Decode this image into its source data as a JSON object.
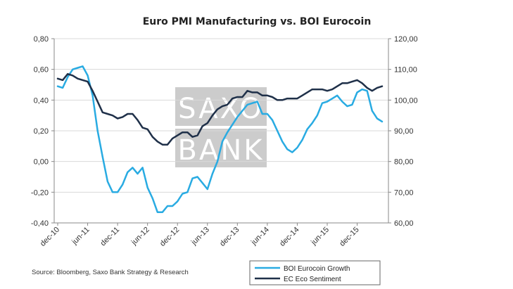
{
  "chart_data": {
    "type": "line",
    "title": "Euro PMI Manufacturing vs. BOI Eurocoin",
    "x_ticks": [
      "dec-10",
      "jun-11",
      "dec-11",
      "jun-12",
      "dec-12",
      "jun-13",
      "dec-13",
      "jun-14",
      "dec-14",
      "jun-15",
      "dec-15"
    ],
    "x_tick_index": [
      0,
      6,
      12,
      18,
      24,
      30,
      36,
      42,
      48,
      54,
      60
    ],
    "y_left": {
      "ticks": [
        "-0,40",
        "-0,20",
        "0,00",
        "0,20",
        "0,40",
        "0,60",
        "0,80"
      ],
      "ylim": [
        -0.4,
        0.8
      ]
    },
    "y_right": {
      "ticks": [
        "60,00",
        "70,00",
        "80,00",
        "90,00",
        "100,00",
        "110,00",
        "120,00"
      ],
      "ylim": [
        60,
        120
      ]
    },
    "series": [
      {
        "name": "BOI Eurocoin Growth",
        "axis": "left",
        "color": "#29ABE2",
        "values": [
          0.49,
          0.48,
          0.55,
          0.6,
          0.61,
          0.62,
          0.56,
          0.43,
          0.2,
          0.03,
          -0.13,
          -0.2,
          -0.2,
          -0.15,
          -0.07,
          -0.04,
          -0.08,
          -0.04,
          -0.17,
          -0.24,
          -0.33,
          -0.33,
          -0.29,
          -0.29,
          -0.26,
          -0.21,
          -0.2,
          -0.11,
          -0.1,
          -0.14,
          -0.18,
          -0.08,
          0.0,
          0.13,
          0.19,
          0.24,
          0.29,
          0.33,
          0.37,
          0.38,
          0.39,
          0.31,
          0.31,
          0.27,
          0.2,
          0.13,
          0.08,
          0.06,
          0.09,
          0.14,
          0.21,
          0.25,
          0.3,
          0.38,
          0.39,
          0.41,
          0.43,
          0.39,
          0.36,
          0.37,
          0.45,
          0.47,
          0.46,
          0.33,
          0.28,
          0.26
        ]
      },
      {
        "name": "EC Eco Sentiment",
        "axis": "right",
        "color": "#1F3049",
        "values": [
          107.0,
          106.5,
          108.5,
          108.0,
          107.0,
          106.5,
          106.0,
          103.0,
          99.5,
          96.0,
          95.5,
          95.0,
          94.0,
          94.5,
          95.5,
          95.5,
          93.5,
          91.0,
          90.5,
          88.0,
          86.5,
          85.5,
          85.5,
          87.5,
          88.5,
          89.5,
          89.5,
          88.0,
          88.5,
          91.5,
          92.5,
          95.0,
          97.0,
          98.0,
          98.5,
          100.5,
          101.0,
          101.0,
          103.0,
          102.5,
          102.5,
          101.5,
          101.5,
          101.0,
          100.0,
          100.0,
          100.5,
          100.5,
          100.5,
          101.5,
          102.5,
          103.5,
          103.5,
          103.5,
          103.0,
          103.5,
          104.5,
          105.5,
          105.5,
          106.0,
          106.5,
          105.5,
          104.0,
          103.0,
          104.0,
          104.5
        ]
      }
    ],
    "legend": {
      "position": "bottom-right"
    },
    "grid": "horizontal",
    "source": "Source: Bloomberg, Saxo Bank Strategy & Research",
    "watermark": [
      "SAXO",
      "BANK"
    ]
  }
}
